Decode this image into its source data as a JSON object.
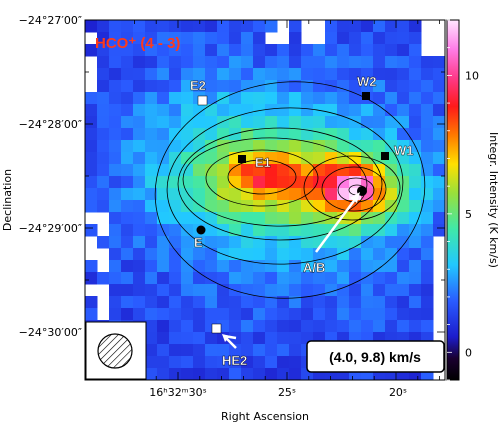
{
  "chart_data": {
    "type": "heatmap",
    "title": "HCO⁺ (4 - 3)",
    "velocity_range_label": "(4.0, 9.8) km/s",
    "xlabel": "Right Ascension",
    "ylabel": "Declination",
    "colorbar_label": "Integr. Intensity (K km/s)",
    "colorbar_ticks": [
      "0",
      "5",
      "10"
    ],
    "colorbar_range": [
      -1,
      12
    ],
    "x_ticks": [
      "16ʰ32ᵐ30ˢ",
      "25ˢ",
      "20ˢ"
    ],
    "y_ticks": [
      "−24°27′00″",
      "−24°28′00″",
      "−24°29′00″",
      "−24°30′00″"
    ],
    "sources": [
      {
        "name": "E2",
        "marker": "white-square"
      },
      {
        "name": "W2",
        "marker": "black-square"
      },
      {
        "name": "E1",
        "marker": "black-square"
      },
      {
        "name": "W1",
        "marker": "black-square"
      },
      {
        "name": "E",
        "marker": "black-circle"
      },
      {
        "name": "A/B",
        "marker": "black-circle"
      },
      {
        "name": "HE2",
        "marker": "white-square"
      }
    ],
    "beam": "hatched-circle",
    "intensity_peaks": [
      {
        "label": "A/B",
        "value": 11
      },
      {
        "label": "E1",
        "value": 7
      }
    ]
  }
}
